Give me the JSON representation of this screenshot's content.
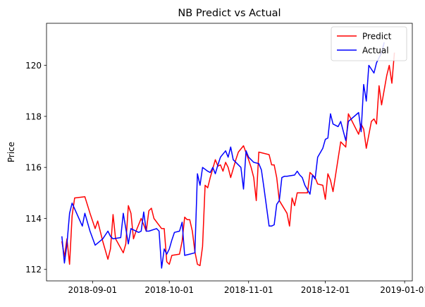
{
  "chart_data": {
    "type": "line",
    "title": "NB Predict vs Actual",
    "xlabel": "",
    "ylabel": "Price",
    "x_ticks": [
      "2018-09-01",
      "2018-10-01",
      "2018-11-01",
      "2018-12-01",
      "2019-01-01"
    ],
    "y_ticks": [
      112,
      114,
      116,
      118,
      120
    ],
    "xlim": [
      "2018-08-14",
      "2019-01-04"
    ],
    "ylim": [
      111.55,
      121.65
    ],
    "grid": false,
    "legend_position": "top-right",
    "series": [
      {
        "name": "Predict",
        "color": "#ff0000",
        "points": [
          [
            "2018-08-20",
            113.1
          ],
          [
            "2018-08-21",
            112.5
          ],
          [
            "2018-08-22",
            113.2
          ],
          [
            "2018-08-23",
            112.2
          ],
          [
            "2018-08-24",
            114.1
          ],
          [
            "2018-08-25",
            114.8
          ],
          [
            "2018-08-29",
            114.85
          ],
          [
            "2018-08-31",
            114.2
          ],
          [
            "2018-09-02",
            113.6
          ],
          [
            "2018-09-03",
            113.9
          ],
          [
            "2018-09-05",
            113.1
          ],
          [
            "2018-09-07",
            112.4
          ],
          [
            "2018-09-08",
            112.8
          ],
          [
            "2018-09-09",
            114.15
          ],
          [
            "2018-09-10",
            113.2
          ],
          [
            "2018-09-13",
            112.65
          ],
          [
            "2018-09-14",
            113.0
          ],
          [
            "2018-09-15",
            114.5
          ],
          [
            "2018-09-16",
            114.2
          ],
          [
            "2018-09-17",
            113.2
          ],
          [
            "2018-09-18",
            113.5
          ],
          [
            "2018-09-20",
            114.0
          ],
          [
            "2018-09-22",
            113.5
          ],
          [
            "2018-09-23",
            114.3
          ],
          [
            "2018-09-24",
            114.4
          ],
          [
            "2018-09-25",
            114.0
          ],
          [
            "2018-09-28",
            113.6
          ],
          [
            "2018-09-29",
            113.6
          ],
          [
            "2018-09-30",
            112.3
          ],
          [
            "2018-10-01",
            112.2
          ],
          [
            "2018-10-02",
            112.55
          ],
          [
            "2018-10-05",
            112.6
          ],
          [
            "2018-10-06",
            113.1
          ],
          [
            "2018-10-07",
            114.05
          ],
          [
            "2018-10-08",
            113.95
          ],
          [
            "2018-10-09",
            113.95
          ],
          [
            "2018-10-10",
            113.5
          ],
          [
            "2018-10-11",
            112.7
          ],
          [
            "2018-10-12",
            112.2
          ],
          [
            "2018-10-13",
            112.15
          ],
          [
            "2018-10-14",
            112.9
          ],
          [
            "2018-10-15",
            115.3
          ],
          [
            "2018-10-16",
            115.2
          ],
          [
            "2018-10-17",
            115.6
          ],
          [
            "2018-10-19",
            116.3
          ],
          [
            "2018-10-20",
            116.05
          ],
          [
            "2018-10-21",
            116.1
          ],
          [
            "2018-10-22",
            115.85
          ],
          [
            "2018-10-23",
            116.2
          ],
          [
            "2018-10-24",
            116.0
          ],
          [
            "2018-10-25",
            115.6
          ],
          [
            "2018-10-27",
            116.3
          ],
          [
            "2018-10-28",
            116.6
          ],
          [
            "2018-10-30",
            116.85
          ],
          [
            "2018-11-01",
            116.3
          ],
          [
            "2018-11-02",
            116.0
          ],
          [
            "2018-11-03",
            115.6
          ],
          [
            "2018-11-04",
            114.7
          ],
          [
            "2018-11-05",
            116.6
          ],
          [
            "2018-11-09",
            116.5
          ],
          [
            "2018-11-10",
            116.1
          ],
          [
            "2018-11-11",
            116.1
          ],
          [
            "2018-11-12",
            115.6
          ],
          [
            "2018-11-13",
            114.7
          ],
          [
            "2018-11-16",
            114.2
          ],
          [
            "2018-11-17",
            113.7
          ],
          [
            "2018-11-18",
            114.8
          ],
          [
            "2018-11-19",
            114.5
          ],
          [
            "2018-11-20",
            115.0
          ],
          [
            "2018-11-23",
            115.0
          ],
          [
            "2018-11-24",
            115.0
          ],
          [
            "2018-11-25",
            115.8
          ],
          [
            "2018-11-26",
            115.7
          ],
          [
            "2018-11-27",
            115.6
          ],
          [
            "2018-11-28",
            115.35
          ],
          [
            "2018-11-30",
            115.3
          ],
          [
            "2018-12-01",
            114.75
          ],
          [
            "2018-12-02",
            115.75
          ],
          [
            "2018-12-03",
            115.5
          ],
          [
            "2018-12-04",
            115.05
          ],
          [
            "2018-12-07",
            117.0
          ],
          [
            "2018-12-08",
            116.9
          ],
          [
            "2018-12-09",
            116.8
          ],
          [
            "2018-12-10",
            118.1
          ],
          [
            "2018-12-12",
            117.7
          ],
          [
            "2018-12-14",
            117.3
          ],
          [
            "2018-12-15",
            117.7
          ],
          [
            "2018-12-16",
            117.5
          ],
          [
            "2018-12-17",
            116.75
          ],
          [
            "2018-12-19",
            117.8
          ],
          [
            "2018-12-20",
            117.9
          ],
          [
            "2018-12-21",
            117.7
          ],
          [
            "2018-12-22",
            119.2
          ],
          [
            "2018-12-23",
            118.45
          ],
          [
            "2018-12-25",
            119.6
          ],
          [
            "2018-12-26",
            120.0
          ],
          [
            "2018-12-27",
            119.3
          ],
          [
            "2018-12-28",
            120.5
          ]
        ]
      },
      {
        "name": "Actual",
        "color": "#0000ff",
        "points": [
          [
            "2018-08-20",
            113.3
          ],
          [
            "2018-08-21",
            112.25
          ],
          [
            "2018-08-22",
            113.0
          ],
          [
            "2018-08-23",
            114.2
          ],
          [
            "2018-08-24",
            114.6
          ],
          [
            "2018-08-28",
            113.7
          ],
          [
            "2018-08-29",
            114.2
          ],
          [
            "2018-08-31",
            113.5
          ],
          [
            "2018-09-02",
            112.95
          ],
          [
            "2018-09-05",
            113.2
          ],
          [
            "2018-09-07",
            113.5
          ],
          [
            "2018-09-08",
            113.3
          ],
          [
            "2018-09-09",
            113.2
          ],
          [
            "2018-09-12",
            113.25
          ],
          [
            "2018-09-13",
            114.2
          ],
          [
            "2018-09-14",
            113.6
          ],
          [
            "2018-09-15",
            113.0
          ],
          [
            "2018-09-16",
            113.6
          ],
          [
            "2018-09-19",
            113.45
          ],
          [
            "2018-09-20",
            113.5
          ],
          [
            "2018-09-21",
            114.25
          ],
          [
            "2018-09-22",
            113.5
          ],
          [
            "2018-09-23",
            113.5
          ],
          [
            "2018-09-26",
            113.6
          ],
          [
            "2018-09-27",
            113.5
          ],
          [
            "2018-09-28",
            112.05
          ],
          [
            "2018-09-29",
            112.8
          ],
          [
            "2018-09-30",
            112.6
          ],
          [
            "2018-10-01",
            112.8
          ],
          [
            "2018-10-02",
            113.15
          ],
          [
            "2018-10-03",
            113.45
          ],
          [
            "2018-10-05",
            113.5
          ],
          [
            "2018-10-06",
            113.85
          ],
          [
            "2018-10-07",
            112.55
          ],
          [
            "2018-10-09",
            112.6
          ],
          [
            "2018-10-11",
            112.65
          ],
          [
            "2018-10-12",
            115.75
          ],
          [
            "2018-10-13",
            115.3
          ],
          [
            "2018-10-14",
            116.0
          ],
          [
            "2018-10-16",
            115.85
          ],
          [
            "2018-10-17",
            115.8
          ],
          [
            "2018-10-18",
            116.0
          ],
          [
            "2018-10-19",
            115.75
          ],
          [
            "2018-10-20",
            116.1
          ],
          [
            "2018-10-21",
            116.4
          ],
          [
            "2018-10-23",
            116.65
          ],
          [
            "2018-10-24",
            116.4
          ],
          [
            "2018-10-25",
            116.8
          ],
          [
            "2018-10-26",
            116.3
          ],
          [
            "2018-10-29",
            116.0
          ],
          [
            "2018-10-30",
            115.15
          ],
          [
            "2018-10-31",
            116.65
          ],
          [
            "2018-11-01",
            116.4
          ],
          [
            "2018-11-03",
            116.2
          ],
          [
            "2018-11-05",
            116.15
          ],
          [
            "2018-11-06",
            115.9
          ],
          [
            "2018-11-07",
            115.2
          ],
          [
            "2018-11-09",
            113.7
          ],
          [
            "2018-11-10",
            113.7
          ],
          [
            "2018-11-11",
            113.75
          ],
          [
            "2018-11-12",
            114.55
          ],
          [
            "2018-11-13",
            114.7
          ],
          [
            "2018-11-14",
            115.6
          ],
          [
            "2018-11-15",
            115.65
          ],
          [
            "2018-11-16",
            115.65
          ],
          [
            "2018-11-19",
            115.7
          ],
          [
            "2018-11-20",
            115.85
          ],
          [
            "2018-11-21",
            115.7
          ],
          [
            "2018-11-22",
            115.6
          ],
          [
            "2018-11-23",
            115.3
          ],
          [
            "2018-11-25",
            114.95
          ],
          [
            "2018-11-26",
            115.7
          ],
          [
            "2018-11-27",
            115.55
          ],
          [
            "2018-11-28",
            116.4
          ],
          [
            "2018-11-30",
            116.75
          ],
          [
            "2018-12-01",
            117.1
          ],
          [
            "2018-12-02",
            117.15
          ],
          [
            "2018-12-03",
            118.1
          ],
          [
            "2018-12-04",
            117.7
          ],
          [
            "2018-12-06",
            117.6
          ],
          [
            "2018-12-07",
            117.8
          ],
          [
            "2018-12-09",
            117.05
          ],
          [
            "2018-12-10",
            117.8
          ],
          [
            "2018-12-14",
            118.15
          ],
          [
            "2018-12-15",
            117.4
          ],
          [
            "2018-12-16",
            119.25
          ],
          [
            "2018-12-17",
            118.6
          ],
          [
            "2018-12-18",
            120.0
          ],
          [
            "2018-12-20",
            119.7
          ],
          [
            "2018-12-21",
            120.1
          ],
          [
            "2018-12-23",
            120.5
          ],
          [
            "2018-12-24",
            120.9
          ]
        ]
      }
    ]
  }
}
